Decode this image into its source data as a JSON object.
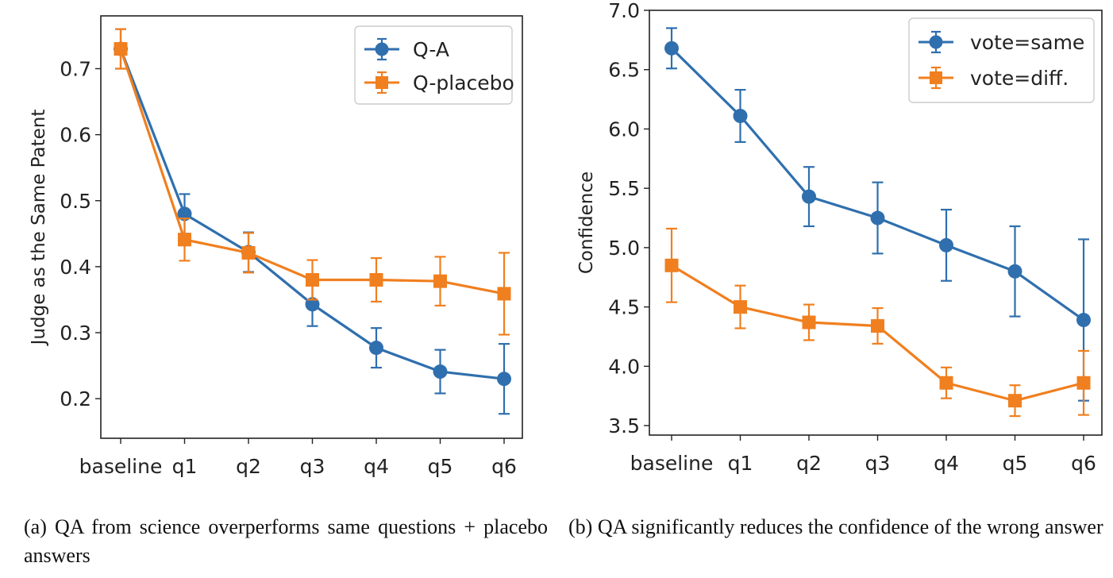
{
  "chart_data": [
    {
      "type": "line",
      "ylabel": "Judge as the Same Patent",
      "xlabel": "",
      "categories": [
        "baseline",
        "q1",
        "q2",
        "q3",
        "q4",
        "q5",
        "q6"
      ],
      "ylim": [
        0.14,
        0.78
      ],
      "yticks": [
        0.2,
        0.3,
        0.4,
        0.5,
        0.6,
        0.7
      ],
      "ytick_labels": [
        "0.2",
        "0.3",
        "0.4",
        "0.5",
        "0.6",
        "0.7"
      ],
      "legend_position": "top-right",
      "series": [
        {
          "name": "Q-A",
          "color": "#2f6fae",
          "marker": "circle",
          "values": [
            0.73,
            0.48,
            0.422,
            0.343,
            0.277,
            0.241,
            0.23
          ],
          "errors": [
            0.03,
            0.03,
            0.03,
            0.033,
            0.03,
            0.033,
            0.053
          ]
        },
        {
          "name": "Q-placebo",
          "color": "#f07f1f",
          "marker": "square",
          "values": [
            0.73,
            0.441,
            0.421,
            0.38,
            0.38,
            0.378,
            0.359
          ],
          "errors": [
            0.03,
            0.032,
            0.03,
            0.03,
            0.033,
            0.037,
            0.062
          ]
        }
      ]
    },
    {
      "type": "line",
      "ylabel": "Confidence",
      "xlabel": "",
      "categories": [
        "baseline",
        "q1",
        "q2",
        "q3",
        "q4",
        "q5",
        "q6"
      ],
      "ylim": [
        3.42,
        7.0
      ],
      "yticks": [
        3.5,
        4.0,
        4.5,
        5.0,
        5.5,
        6.0,
        6.5,
        7.0
      ],
      "ytick_labels": [
        "3.5",
        "4.0",
        "4.5",
        "5.0",
        "5.5",
        "6.0",
        "6.5",
        "7.0"
      ],
      "legend_position": "top-right",
      "series": [
        {
          "name": "vote=same",
          "color": "#2f6fae",
          "marker": "circle",
          "values": [
            6.68,
            6.11,
            5.43,
            5.25,
            5.02,
            4.8,
            4.39
          ],
          "errors": [
            0.17,
            0.22,
            0.25,
            0.3,
            0.3,
            0.38,
            0.68
          ]
        },
        {
          "name": "vote=diff.",
          "color": "#f07f1f",
          "marker": "square",
          "values": [
            4.85,
            4.5,
            4.37,
            4.34,
            3.86,
            3.71,
            3.86
          ],
          "errors": [
            0.31,
            0.18,
            0.15,
            0.15,
            0.13,
            0.13,
            0.27
          ]
        }
      ]
    }
  ],
  "captions": {
    "a": "(a) QA from science overperforms same questions + placebo answers",
    "b": "(b) QA significantly reduces the confidence of the wrong answer"
  }
}
